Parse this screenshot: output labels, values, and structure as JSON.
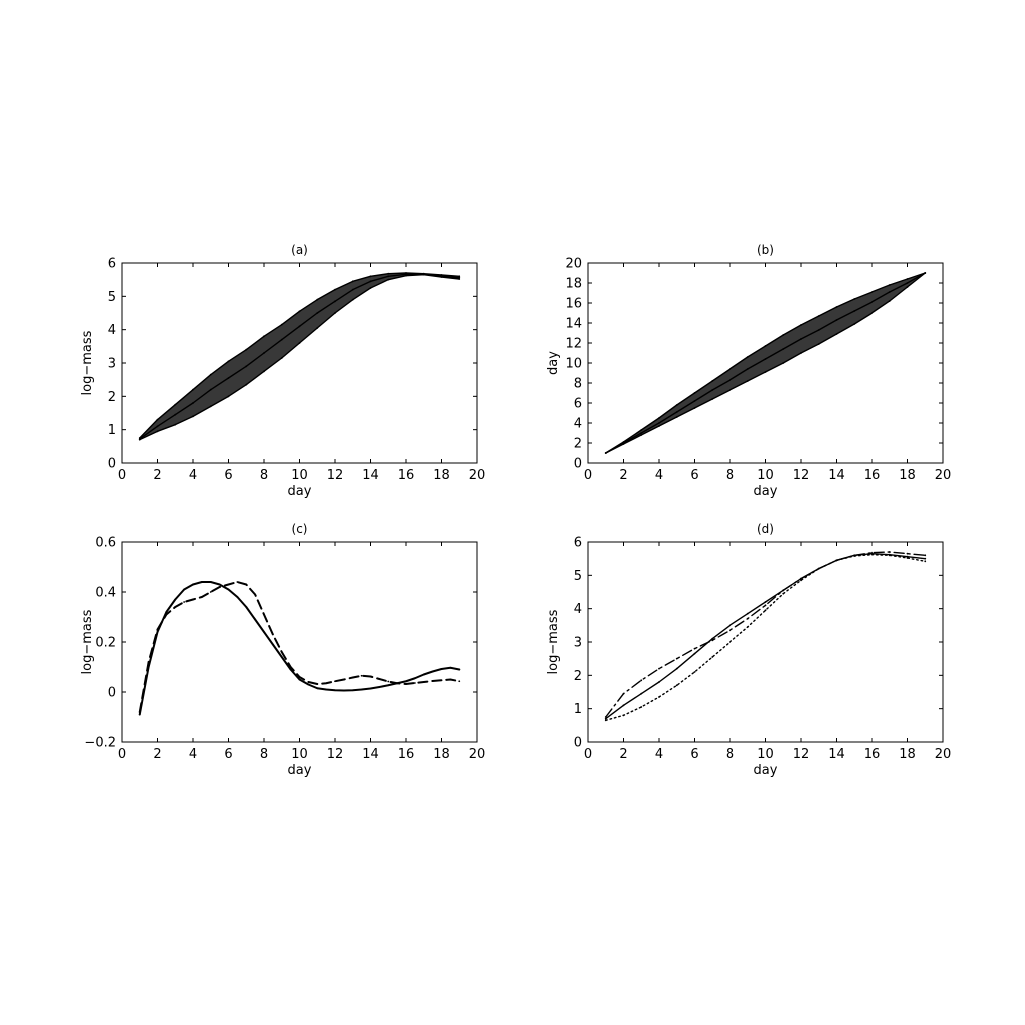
{
  "chart_data": [
    {
      "type": "line",
      "panel": "(a)",
      "title": "(a)",
      "xlabel": "day",
      "ylabel": "log−mass",
      "xlim": [
        0,
        20
      ],
      "ylim": [
        0,
        6
      ],
      "xticks": [
        0,
        2,
        4,
        6,
        8,
        10,
        12,
        14,
        16,
        18,
        20
      ],
      "yticks": [
        0,
        1,
        2,
        3,
        4,
        5,
        6
      ],
      "grid": false,
      "legend": "none",
      "note": "many overlapping curves; upper and lower envelope shown",
      "x": [
        1,
        2,
        3,
        4,
        5,
        6,
        7,
        8,
        9,
        10,
        11,
        12,
        13,
        14,
        15,
        16,
        17,
        18,
        19
      ],
      "series": [
        {
          "values": [
            0.75,
            1.3,
            1.75,
            2.2,
            2.65,
            3.05,
            3.4,
            3.8,
            4.15,
            4.55,
            4.9,
            5.2,
            5.45,
            5.6,
            5.68,
            5.7,
            5.68,
            5.64,
            5.6
          ]
        },
        {
          "values": [
            0.7,
            0.95,
            1.15,
            1.4,
            1.7,
            2.0,
            2.35,
            2.75,
            3.15,
            3.6,
            4.05,
            4.5,
            4.9,
            5.25,
            5.5,
            5.62,
            5.65,
            5.58,
            5.52
          ]
        },
        {
          "values": [
            0.72,
            1.1,
            1.45,
            1.8,
            2.2,
            2.55,
            2.9,
            3.3,
            3.7,
            4.1,
            4.5,
            4.85,
            5.2,
            5.45,
            5.6,
            5.66,
            5.66,
            5.6,
            5.56
          ]
        }
      ]
    },
    {
      "type": "line",
      "panel": "(b)",
      "title": "(b)",
      "xlabel": "day",
      "ylabel": "day",
      "xlim": [
        0,
        20
      ],
      "ylim": [
        0,
        20
      ],
      "xticks": [
        0,
        2,
        4,
        6,
        8,
        10,
        12,
        14,
        16,
        18,
        20
      ],
      "yticks": [
        0,
        2,
        4,
        6,
        8,
        10,
        12,
        14,
        16,
        18,
        20
      ],
      "grid": false,
      "legend": "none",
      "note": "many overlapping time-warping curves; upper and lower envelope shown",
      "x": [
        1,
        2,
        3,
        4,
        5,
        6,
        7,
        8,
        9,
        10,
        11,
        12,
        13,
        14,
        15,
        16,
        17,
        18,
        19
      ],
      "series": [
        {
          "values": [
            1,
            2.1,
            3.3,
            4.5,
            5.8,
            7.0,
            8.2,
            9.4,
            10.6,
            11.7,
            12.8,
            13.8,
            14.7,
            15.6,
            16.4,
            17.1,
            17.8,
            18.4,
            19
          ]
        },
        {
          "values": [
            1,
            1.9,
            2.8,
            3.7,
            4.6,
            5.5,
            6.4,
            7.3,
            8.2,
            9.1,
            10.0,
            11.0,
            11.9,
            12.9,
            13.9,
            15.0,
            16.2,
            17.6,
            19
          ]
        },
        {
          "values": [
            1,
            2.0,
            3.0,
            4.0,
            5.1,
            6.2,
            7.3,
            8.3,
            9.4,
            10.4,
            11.4,
            12.4,
            13.3,
            14.3,
            15.2,
            16.1,
            17.1,
            18.0,
            19
          ]
        }
      ]
    },
    {
      "type": "line",
      "panel": "(c)",
      "title": "(c)",
      "xlabel": "day",
      "ylabel": "log−mass",
      "xlim": [
        0,
        20
      ],
      "ylim": [
        -0.2,
        0.6
      ],
      "xticks": [
        0,
        2,
        4,
        6,
        8,
        10,
        12,
        14,
        16,
        18,
        20
      ],
      "yticks": [
        -0.2,
        0,
        0.2,
        0.4,
        0.6
      ],
      "ytick_labels": [
        "−0.2",
        "0",
        "0.2",
        "0.4",
        "0.6"
      ],
      "grid": false,
      "legend": "none",
      "x": [
        1,
        1.5,
        2,
        2.5,
        3,
        3.5,
        4,
        4.5,
        5,
        5.5,
        6,
        6.5,
        7,
        7.5,
        8,
        8.5,
        9,
        9.5,
        10,
        10.5,
        11,
        11.5,
        12,
        12.5,
        13,
        13.5,
        14,
        14.5,
        15,
        15.5,
        16,
        16.5,
        17,
        17.5,
        18,
        18.5,
        19
      ],
      "series": [
        {
          "style": "solid",
          "values": [
            -0.09,
            0.1,
            0.24,
            0.32,
            0.37,
            0.41,
            0.43,
            0.44,
            0.44,
            0.43,
            0.41,
            0.38,
            0.34,
            0.29,
            0.24,
            0.19,
            0.14,
            0.09,
            0.05,
            0.03,
            0.015,
            0.01,
            0.007,
            0.006,
            0.007,
            0.01,
            0.014,
            0.02,
            0.027,
            0.035,
            0.043,
            0.055,
            0.07,
            0.082,
            0.092,
            0.097,
            0.09
          ]
        },
        {
          "style": "dashed",
          "values": [
            -0.08,
            0.12,
            0.25,
            0.31,
            0.34,
            0.36,
            0.37,
            0.38,
            0.4,
            0.42,
            0.43,
            0.44,
            0.43,
            0.39,
            0.31,
            0.23,
            0.16,
            0.1,
            0.06,
            0.04,
            0.032,
            0.035,
            0.043,
            0.05,
            0.058,
            0.065,
            0.062,
            0.052,
            0.042,
            0.035,
            0.032,
            0.036,
            0.04,
            0.044,
            0.047,
            0.05,
            0.043
          ]
        }
      ]
    },
    {
      "type": "line",
      "panel": "(d)",
      "title": "(d)",
      "xlabel": "day",
      "ylabel": "log−mass",
      "xlim": [
        0,
        20
      ],
      "ylim": [
        0,
        6
      ],
      "xticks": [
        0,
        2,
        4,
        6,
        8,
        10,
        12,
        14,
        16,
        18,
        20
      ],
      "yticks": [
        0,
        1,
        2,
        3,
        4,
        5,
        6
      ],
      "grid": false,
      "legend": "none",
      "x": [
        1,
        2,
        3,
        4,
        5,
        6,
        7,
        8,
        9,
        10,
        11,
        12,
        13,
        14,
        15,
        16,
        17,
        18,
        19
      ],
      "series": [
        {
          "style": "solid",
          "values": [
            0.7,
            1.1,
            1.45,
            1.8,
            2.2,
            2.65,
            3.1,
            3.5,
            3.85,
            4.2,
            4.55,
            4.9,
            5.2,
            5.45,
            5.6,
            5.65,
            5.62,
            5.56,
            5.5
          ]
        },
        {
          "style": "dashdot",
          "values": [
            0.75,
            1.45,
            1.85,
            2.2,
            2.5,
            2.8,
            3.05,
            3.35,
            3.7,
            4.1,
            4.55,
            4.9,
            5.2,
            5.45,
            5.6,
            5.68,
            5.7,
            5.65,
            5.6
          ]
        },
        {
          "style": "dotted",
          "values": [
            0.65,
            0.8,
            1.05,
            1.35,
            1.7,
            2.1,
            2.55,
            3.0,
            3.45,
            3.95,
            4.45,
            4.85,
            5.2,
            5.45,
            5.58,
            5.62,
            5.6,
            5.52,
            5.42
          ]
        }
      ]
    }
  ]
}
